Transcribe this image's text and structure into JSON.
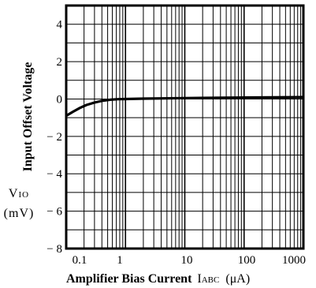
{
  "chart_data": {
    "type": "line",
    "x_scale": "log",
    "xlim": [
      0.1,
      1000
    ],
    "ylim": [
      -8,
      5
    ],
    "grid": true,
    "x_ticks": [
      "0.1",
      "1",
      "10",
      "100",
      "1000"
    ],
    "y_ticks": [
      "4",
      "2",
      "0",
      "− 2",
      "− 4",
      "− 6",
      "− 8"
    ],
    "y_tick_values": [
      4,
      2,
      0,
      -2,
      -4,
      -6,
      -8
    ],
    "xlabel": {
      "text": "Amplifier Bias Current",
      "symbol": "I",
      "subscript": "ABC",
      "unit": "(μA)"
    },
    "ylabel": "Input Offset Voltage",
    "y_symbol": {
      "main": "V",
      "subscript": "IO",
      "unit": "(mV)"
    },
    "series": [
      {
        "x": [
          0.1,
          0.13,
          0.17,
          0.22,
          0.3,
          0.4,
          0.55,
          0.75,
          1,
          2,
          10,
          100,
          1000
        ],
        "y": [
          -0.9,
          -0.68,
          -0.48,
          -0.32,
          -0.19,
          -0.1,
          -0.04,
          -0.01,
          0,
          0.02,
          0.05,
          0.08,
          0.1
        ]
      }
    ]
  }
}
